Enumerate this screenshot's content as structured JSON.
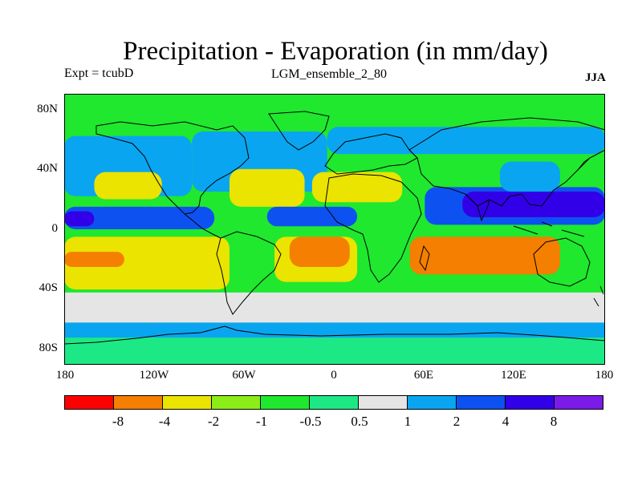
{
  "title": "Precipitation - Evaporation (in mm/day)",
  "experiment": "Expt = tcubD",
  "ensemble": "LGM_ensemble_2_80",
  "season": "JJA",
  "colors": {
    "red": "#ff0000",
    "orange": "#f47f00",
    "yellow": "#ebe300",
    "yellowgreen": "#8ced18",
    "green": "#1fe82f",
    "seagreen": "#1de886",
    "gray": "#e5e5e5",
    "lightblue": "#0aa5f0",
    "blue": "#0d52f0",
    "darkblue": "#3200e8",
    "violet": "#7a1be8",
    "coast": "#000000"
  },
  "chart_data": {
    "type": "heatmap",
    "title": "Precipitation - Evaporation (in mm/day)",
    "units": "mm/day",
    "projection": "cylindrical equidistant",
    "xlim": [
      -180,
      180
    ],
    "ylim": [
      -90,
      90
    ],
    "lat_ticks": [
      {
        "value": 80,
        "label": "80N"
      },
      {
        "value": 40,
        "label": "40N"
      },
      {
        "value": 0,
        "label": "0"
      },
      {
        "value": -40,
        "label": "40S"
      },
      {
        "value": -80,
        "label": "80S"
      }
    ],
    "lon_ticks": [
      {
        "value": -180,
        "label": "180"
      },
      {
        "value": -120,
        "label": "120W"
      },
      {
        "value": -60,
        "label": "60W"
      },
      {
        "value": 0,
        "label": "0"
      },
      {
        "value": 60,
        "label": "60E"
      },
      {
        "value": 120,
        "label": "120E"
      },
      {
        "value": 180,
        "label": "180"
      }
    ],
    "contour_levels": [
      {
        "value": -8,
        "label": "-8"
      },
      {
        "value": -4,
        "label": "-4"
      },
      {
        "value": -2,
        "label": "-2"
      },
      {
        "value": -1,
        "label": "-1"
      },
      {
        "value": -0.5,
        "label": "-0.5"
      },
      {
        "value": 0.5,
        "label": "0.5"
      },
      {
        "value": 1,
        "label": "1"
      },
      {
        "value": 2,
        "label": "2"
      },
      {
        "value": 4,
        "label": "4"
      },
      {
        "value": 8,
        "label": "8"
      }
    ],
    "colorbar": [
      {
        "range": "< -8",
        "color": "red"
      },
      {
        "range": "-8 to -4",
        "color": "orange"
      },
      {
        "range": "-4 to -2",
        "color": "yellow"
      },
      {
        "range": "-2 to -1",
        "color": "yellowgreen"
      },
      {
        "range": "-1 to -0.5",
        "color": "green"
      },
      {
        "range": "-0.5 to 0.5",
        "color": "seagreen"
      },
      {
        "range": "0.5 to 1",
        "color": "gray"
      },
      {
        "range": "1 to 2",
        "color": "lightblue"
      },
      {
        "range": "2 to 4",
        "color": "blue"
      },
      {
        "range": "4 to 8",
        "color": "darkblue"
      },
      {
        "range": "> 8",
        "color": "violet"
      }
    ],
    "regions": [
      {
        "name": "arctic-green",
        "color": "green",
        "lon": [
          -180,
          180
        ],
        "lat": [
          62,
          90
        ]
      },
      {
        "name": "npac-storm-track",
        "color": "lightblue",
        "lon": [
          -180,
          -95
        ],
        "lat": [
          22,
          62
        ]
      },
      {
        "name": "natl-storm-track",
        "color": "lightblue",
        "lon": [
          -95,
          -5
        ],
        "lat": [
          25,
          65
        ]
      },
      {
        "name": "eurasia-north",
        "color": "lightblue",
        "lon": [
          -5,
          180
        ],
        "lat": [
          50,
          68
        ]
      },
      {
        "name": "npac-dry",
        "color": "yellow",
        "lon": [
          -160,
          -115
        ],
        "lat": [
          20,
          38
        ]
      },
      {
        "name": "natl-dry",
        "color": "yellow",
        "lon": [
          -70,
          -20
        ],
        "lat": [
          15,
          40
        ]
      },
      {
        "name": "sahara-arabia",
        "color": "yellow",
        "lon": [
          -15,
          45
        ],
        "lat": [
          18,
          38
        ]
      },
      {
        "name": "pacific-itcz",
        "color": "blue",
        "lon": [
          -180,
          -80
        ],
        "lat": [
          0,
          15
        ]
      },
      {
        "name": "pacific-itcz-core",
        "color": "darkblue",
        "lon": [
          -180,
          -160
        ],
        "lat": [
          2,
          12
        ]
      },
      {
        "name": "atlantic-itcz",
        "color": "blue",
        "lon": [
          -45,
          15
        ],
        "lat": [
          2,
          15
        ]
      },
      {
        "name": "asian-monsoon",
        "color": "blue",
        "lon": [
          60,
          180
        ],
        "lat": [
          3,
          28
        ]
      },
      {
        "name": "asian-monsoon-core",
        "color": "darkblue",
        "lon": [
          85,
          180
        ],
        "lat": [
          8,
          25
        ]
      },
      {
        "name": "east-asia-blue",
        "color": "lightblue",
        "lon": [
          110,
          150
        ],
        "lat": [
          25,
          45
        ]
      },
      {
        "name": "spac-dry",
        "color": "yellow",
        "lon": [
          -180,
          -70
        ],
        "lat": [
          -40,
          -5
        ]
      },
      {
        "name": "spac-dry-core",
        "color": "orange",
        "lon": [
          -180,
          -140
        ],
        "lat": [
          -25,
          -15
        ]
      },
      {
        "name": "satl-dry",
        "color": "yellow",
        "lon": [
          -40,
          15
        ],
        "lat": [
          -35,
          -5
        ]
      },
      {
        "name": "satl-dry-core",
        "color": "orange",
        "lon": [
          -30,
          10
        ],
        "lat": [
          -25,
          -5
        ]
      },
      {
        "name": "sio-dry",
        "color": "orange",
        "lon": [
          50,
          150
        ],
        "lat": [
          -30,
          -5
        ]
      },
      {
        "name": "southern-ocean",
        "color": "gray",
        "lon": [
          -180,
          180
        ],
        "lat": [
          -62,
          -42
        ]
      },
      {
        "name": "southern-ocean-storm",
        "color": "lightblue",
        "lon": [
          -180,
          180
        ],
        "lat": [
          -72,
          -62
        ]
      },
      {
        "name": "antarctica",
        "color": "seagreen",
        "lon": [
          -180,
          180
        ],
        "lat": [
          -90,
          -72
        ]
      }
    ]
  }
}
